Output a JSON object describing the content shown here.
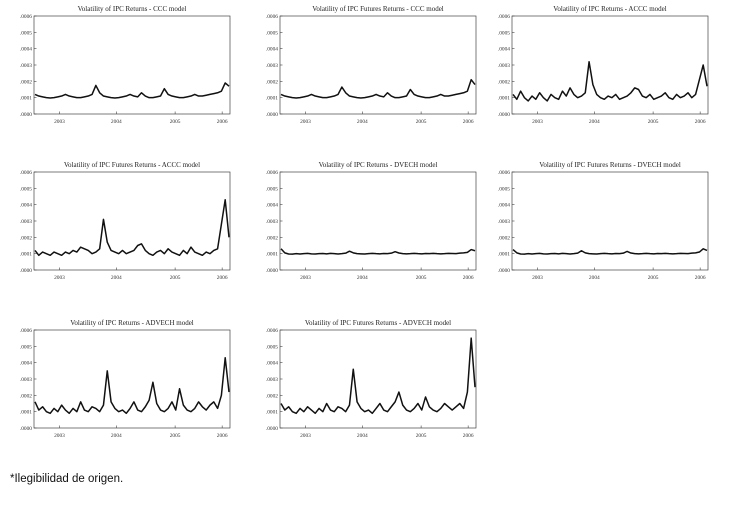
{
  "footnote": "*Ilegibilidad de origen.",
  "chart_data": [
    {
      "type": "line",
      "title": "Volatility of IPC Returns - CCC model",
      "x_ticks": [
        "2003",
        "2004",
        "2005",
        "2006"
      ],
      "y_ticks": [
        ".0000",
        ".0001",
        ".0002",
        ".0003",
        ".0004",
        ".0005",
        ".0006"
      ],
      "ylim": [
        0,
        0.0006
      ],
      "series": [
        {
          "values": [
            0.00012,
            0.00011,
            0.000105,
            0.0001,
            9.8e-05,
            0.0001,
            0.000105,
            0.00011,
            0.00012,
            0.00011,
            0.000105,
            0.0001,
            0.0001,
            0.000105,
            0.00011,
            0.00012,
            0.000175,
            0.00013,
            0.00011,
            0.000105,
            0.0001,
            9.8e-05,
            0.0001,
            0.000105,
            0.00011,
            0.00012,
            0.00011,
            0.000105,
            0.00013,
            0.00011,
            0.0001,
            0.0001,
            0.000105,
            0.00011,
            0.000155,
            0.00012,
            0.00011,
            0.000105,
            0.0001,
            0.0001,
            0.000105,
            0.00011,
            0.00012,
            0.00011,
            0.00011,
            0.000115,
            0.00012,
            0.000125,
            0.00013,
            0.00014,
            0.00019,
            0.00017
          ]
        }
      ]
    },
    {
      "type": "line",
      "title": "Volatility of IPC Futures Returns - CCC model",
      "x_ticks": [
        "2003",
        "2004",
        "2005",
        "2006"
      ],
      "y_ticks": [
        ".0000",
        ".0001",
        ".0002",
        ".0003",
        ".0004",
        ".0005",
        ".0006"
      ],
      "ylim": [
        0,
        0.0006
      ],
      "series": [
        {
          "values": [
            0.00012,
            0.00011,
            0.000105,
            0.0001,
            9.8e-05,
            0.0001,
            0.000105,
            0.00011,
            0.00012,
            0.00011,
            0.000105,
            0.0001,
            0.0001,
            0.000105,
            0.00011,
            0.00012,
            0.000165,
            0.00013,
            0.00011,
            0.000105,
            0.0001,
            9.8e-05,
            0.0001,
            0.000105,
            0.00011,
            0.00012,
            0.00011,
            0.000105,
            0.00013,
            0.00011,
            0.0001,
            0.0001,
            0.000105,
            0.00011,
            0.00015,
            0.00012,
            0.00011,
            0.000105,
            0.0001,
            0.0001,
            0.000105,
            0.00011,
            0.00012,
            0.00011,
            0.00011,
            0.000115,
            0.00012,
            0.000125,
            0.00013,
            0.00014,
            0.00021,
            0.00018
          ]
        }
      ]
    },
    {
      "type": "line",
      "title": "Volatility of IPC Returns - ACCC model",
      "x_ticks": [
        "2003",
        "2004",
        "2005",
        "2006"
      ],
      "y_ticks": [
        ".0000",
        ".0001",
        ".0002",
        ".0003",
        ".0004",
        ".0005",
        ".0006"
      ],
      "ylim": [
        0,
        0.0006
      ],
      "series": [
        {
          "values": [
            0.00012,
            9e-05,
            0.00014,
            0.0001,
            8e-05,
            0.00011,
            9e-05,
            0.00013,
            0.0001,
            8e-05,
            0.00012,
            0.0001,
            9e-05,
            0.00014,
            0.00011,
            0.00016,
            0.00012,
            0.0001,
            0.00011,
            0.00013,
            0.00032,
            0.00018,
            0.00012,
            0.0001,
            9e-05,
            0.00011,
            0.0001,
            0.00012,
            9e-05,
            0.0001,
            0.00011,
            0.00013,
            0.00016,
            0.00015,
            0.00011,
            0.0001,
            0.00012,
            9e-05,
            0.0001,
            0.00011,
            0.00013,
            0.0001,
            9e-05,
            0.00012,
            0.0001,
            0.00011,
            0.00013,
            0.0001,
            0.00012,
            0.00021,
            0.0003,
            0.00017
          ]
        }
      ]
    },
    {
      "type": "line",
      "title": "Volatility of IPC Futures Returns - ACCC model",
      "x_ticks": [
        "2003",
        "2004",
        "2005",
        "2006"
      ],
      "y_ticks": [
        ".0000",
        ".0001",
        ".0002",
        ".0003",
        ".0004",
        ".0005",
        ".0006"
      ],
      "ylim": [
        0,
        0.0006
      ],
      "series": [
        {
          "values": [
            0.00012,
            9e-05,
            0.00011,
            0.0001,
            9e-05,
            0.00011,
            0.0001,
            9e-05,
            0.00011,
            0.0001,
            0.00012,
            0.00011,
            0.00014,
            0.00013,
            0.00012,
            0.0001,
            0.00011,
            0.00013,
            0.00031,
            0.00017,
            0.00012,
            0.00011,
            0.0001,
            0.00012,
            0.0001,
            0.00011,
            0.00012,
            0.00015,
            0.00016,
            0.00012,
            0.0001,
            9e-05,
            0.00011,
            0.00012,
            0.0001,
            0.00013,
            0.00011,
            0.0001,
            9e-05,
            0.00012,
            0.0001,
            0.00014,
            0.00011,
            0.0001,
            9e-05,
            0.00011,
            0.0001,
            0.00012,
            0.00013,
            0.00028,
            0.00043,
            0.0002
          ]
        }
      ]
    },
    {
      "type": "line",
      "title": "Volatility of IPC Returns - DVECH model",
      "x_ticks": [
        "2003",
        "2004",
        "2005",
        "2006"
      ],
      "y_ticks": [
        ".0000",
        ".0001",
        ".0002",
        ".0003",
        ".0004",
        ".0005",
        ".0006"
      ],
      "ylim": [
        0,
        0.0006
      ],
      "series": [
        {
          "values": [
            0.00013,
            0.000105,
            9.8e-05,
            9.7e-05,
            0.0001,
            9.8e-05,
            0.0001,
            0.000102,
            9.9e-05,
            9.8e-05,
            0.0001,
            0.000101,
            9.9e-05,
            0.000102,
            0.0001,
            9.8e-05,
            0.0001,
            0.000103,
            0.000115,
            0.000105,
            0.0001,
            9.9e-05,
            9.8e-05,
            0.0001,
            0.000102,
            0.0001,
            9.9e-05,
            0.000101,
            0.0001,
            0.000103,
            0.000112,
            0.000104,
            0.0001,
            9.9e-05,
            0.0001,
            0.000102,
            0.0001,
            9.9e-05,
            0.000101,
            0.0001,
            0.000102,
            0.0001,
            9.9e-05,
            0.0001,
            0.000102,
            0.000101,
            0.0001,
            0.000103,
            0.000105,
            0.000108,
            0.000125,
            0.000118
          ]
        }
      ]
    },
    {
      "type": "line",
      "title": "Volatility of IPC Futures Returns - DVECH model",
      "x_ticks": [
        "2003",
        "2004",
        "2005",
        "2006"
      ],
      "y_ticks": [
        ".0000",
        ".0001",
        ".0002",
        ".0003",
        ".0004",
        ".0005",
        ".0006"
      ],
      "ylim": [
        0,
        0.0006
      ],
      "series": [
        {
          "values": [
            0.000125,
            0.000105,
            9.8e-05,
            9.7e-05,
            0.0001,
            9.8e-05,
            0.0001,
            0.000102,
            9.9e-05,
            9.8e-05,
            0.0001,
            0.000101,
            9.9e-05,
            0.000102,
            0.0001,
            9.8e-05,
            0.0001,
            0.000103,
            0.000118,
            0.000105,
            0.0001,
            9.9e-05,
            9.8e-05,
            0.0001,
            0.000102,
            0.0001,
            9.9e-05,
            0.000101,
            0.0001,
            0.000103,
            0.000114,
            0.000104,
            0.0001,
            9.9e-05,
            0.0001,
            0.000102,
            0.0001,
            9.9e-05,
            0.000101,
            0.0001,
            0.000102,
            0.0001,
            9.9e-05,
            0.0001,
            0.000102,
            0.000101,
            0.0001,
            0.000103,
            0.000105,
            0.00011,
            0.00013,
            0.00012
          ]
        }
      ]
    },
    {
      "type": "line",
      "title": "Volatility of IPC Returns - ADVECH model",
      "x_ticks": [
        "2003",
        "2004",
        "2005",
        "2006"
      ],
      "y_ticks": [
        ".0000",
        ".0001",
        ".0002",
        ".0003",
        ".0004",
        ".0005",
        ".0006"
      ],
      "ylim": [
        0,
        0.0006
      ],
      "series": [
        {
          "values": [
            0.00016,
            0.00011,
            0.00013,
            0.0001,
            9e-05,
            0.00012,
            0.0001,
            0.00014,
            0.00011,
            9e-05,
            0.00012,
            0.0001,
            0.00016,
            0.00011,
            0.0001,
            0.00013,
            0.00012,
            0.0001,
            0.00014,
            0.00035,
            0.00016,
            0.00012,
            0.0001,
            0.00011,
            9e-05,
            0.00012,
            0.00016,
            0.00011,
            0.0001,
            0.00013,
            0.00017,
            0.00028,
            0.00015,
            0.00011,
            0.0001,
            0.00012,
            0.00016,
            0.00011,
            0.00024,
            0.00014,
            0.00011,
            0.0001,
            0.00012,
            0.00016,
            0.00013,
            0.00011,
            0.00014,
            0.00016,
            0.00012,
            0.0002,
            0.00043,
            0.00022
          ]
        }
      ]
    },
    {
      "type": "line",
      "title": "Volatility of IPC Futures Returns - ADVECH model",
      "x_ticks": [
        "2003",
        "2004",
        "2005",
        "2006"
      ],
      "y_ticks": [
        ".0000",
        ".0001",
        ".0002",
        ".0003",
        ".0004",
        ".0005",
        ".0006"
      ],
      "ylim": [
        0,
        0.0006
      ],
      "series": [
        {
          "values": [
            0.00015,
            0.00011,
            0.00013,
            0.0001,
            9e-05,
            0.00012,
            0.0001,
            0.00013,
            0.00011,
            9e-05,
            0.00012,
            0.0001,
            0.00015,
            0.00011,
            0.0001,
            0.00013,
            0.00012,
            0.0001,
            0.00014,
            0.00036,
            0.00016,
            0.00012,
            0.0001,
            0.00011,
            9e-05,
            0.00012,
            0.00015,
            0.00011,
            0.0001,
            0.00013,
            0.00016,
            0.00022,
            0.00014,
            0.00011,
            0.0001,
            0.00012,
            0.00015,
            0.00011,
            0.00019,
            0.00013,
            0.00011,
            0.0001,
            0.00012,
            0.00015,
            0.00013,
            0.00011,
            0.00013,
            0.00015,
            0.00012,
            0.00022,
            0.00055,
            0.00025
          ]
        }
      ]
    }
  ]
}
